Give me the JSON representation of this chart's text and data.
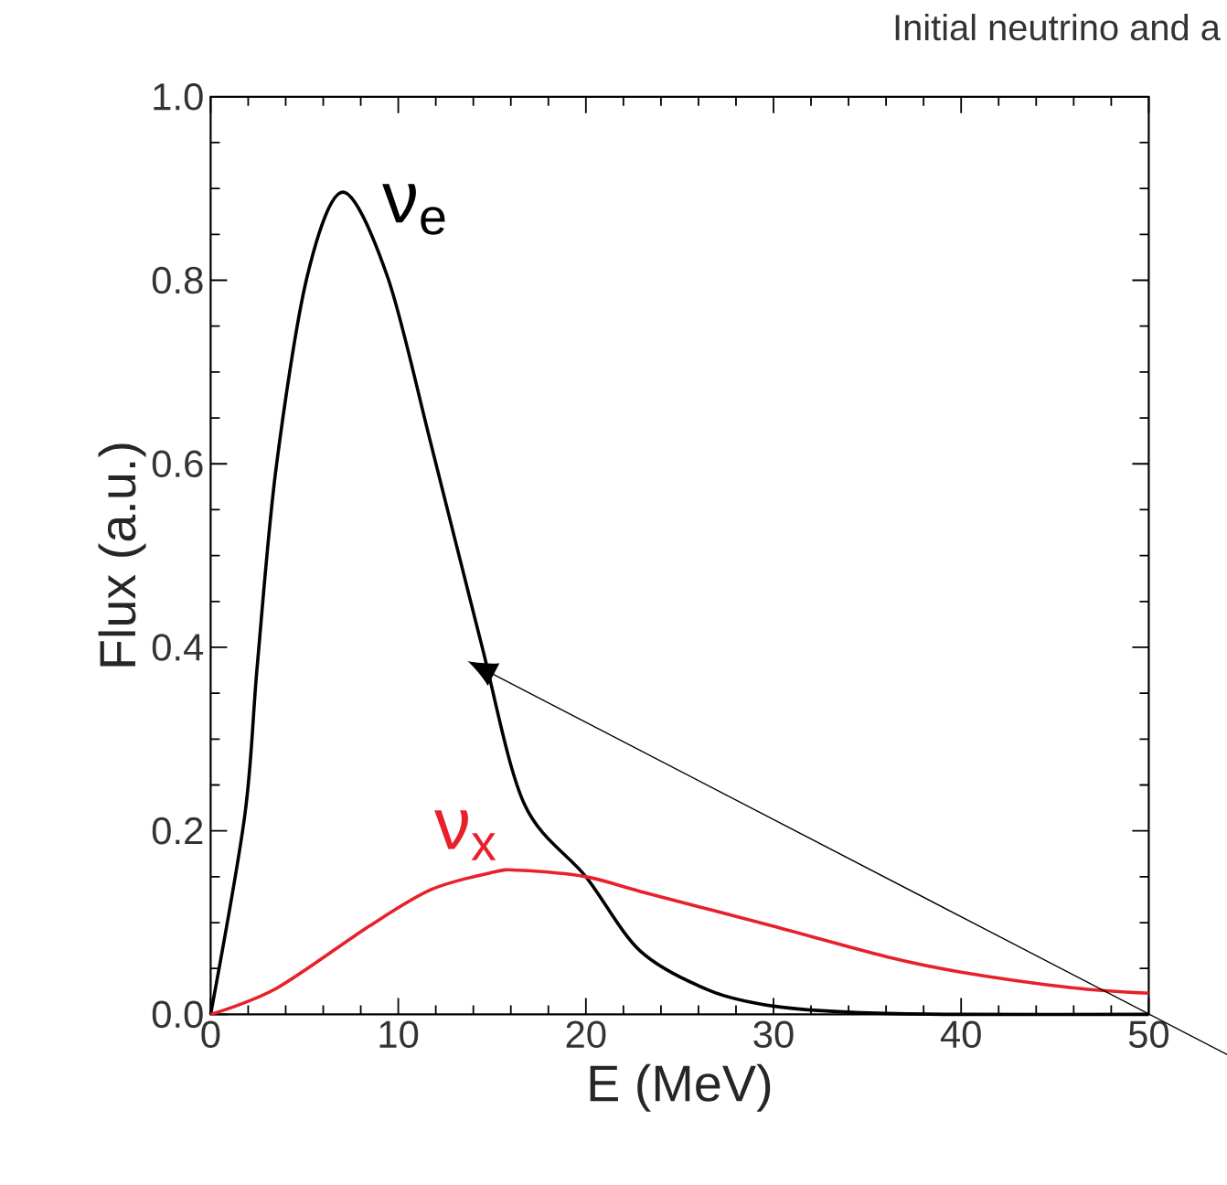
{
  "chart_data": {
    "type": "line",
    "title": "Initial neutrino and a",
    "xlabel": "E (MeV)",
    "ylabel": "Flux (a.u.)",
    "series": [
      {
        "name": "ν$_{e}$",
        "color": "#000000",
        "x": [
          0,
          1.82,
          2.48,
          3.48,
          5.13,
          7.05,
          9.44,
          11.75,
          14.4,
          16.7,
          20,
          22.9,
          26.6,
          30,
          34.4,
          40,
          50
        ],
        "values": [
          0,
          0.217,
          0.379,
          0.594,
          0.803,
          0.896,
          0.803,
          0.621,
          0.406,
          0.23,
          0.15,
          0.069,
          0.026,
          0.009,
          0.002,
          0,
          0
        ]
      },
      {
        "name": "ν$_{x}$",
        "color": "#e8202a",
        "x": [
          0,
          3.48,
          8.44,
          11.75,
          15.07,
          16.4,
          20,
          22.9,
          30,
          36,
          40,
          45.9,
          50
        ],
        "values": [
          0,
          0.028,
          0.096,
          0.136,
          0.155,
          0.157,
          0.15,
          0.134,
          0.096,
          0.063,
          0.046,
          0.029,
          0.023
        ]
      }
    ],
    "xlim": [
      0,
      50
    ],
    "ylim": [
      0,
      1.0
    ],
    "xticks": [
      0,
      10,
      20,
      30,
      40,
      50
    ],
    "yticks": [
      {
        "value": 0,
        "label": "0.0"
      },
      {
        "value": 0.2,
        "label": "0.2"
      },
      {
        "value": 0.4,
        "label": "0.4"
      },
      {
        "value": 0.6,
        "label": "0.6"
      },
      {
        "value": 0.8,
        "label": "0.8"
      },
      {
        "value": 1.0,
        "label": "1.0"
      }
    ],
    "grid": false,
    "marker": "none",
    "line_style": "solid"
  }
}
